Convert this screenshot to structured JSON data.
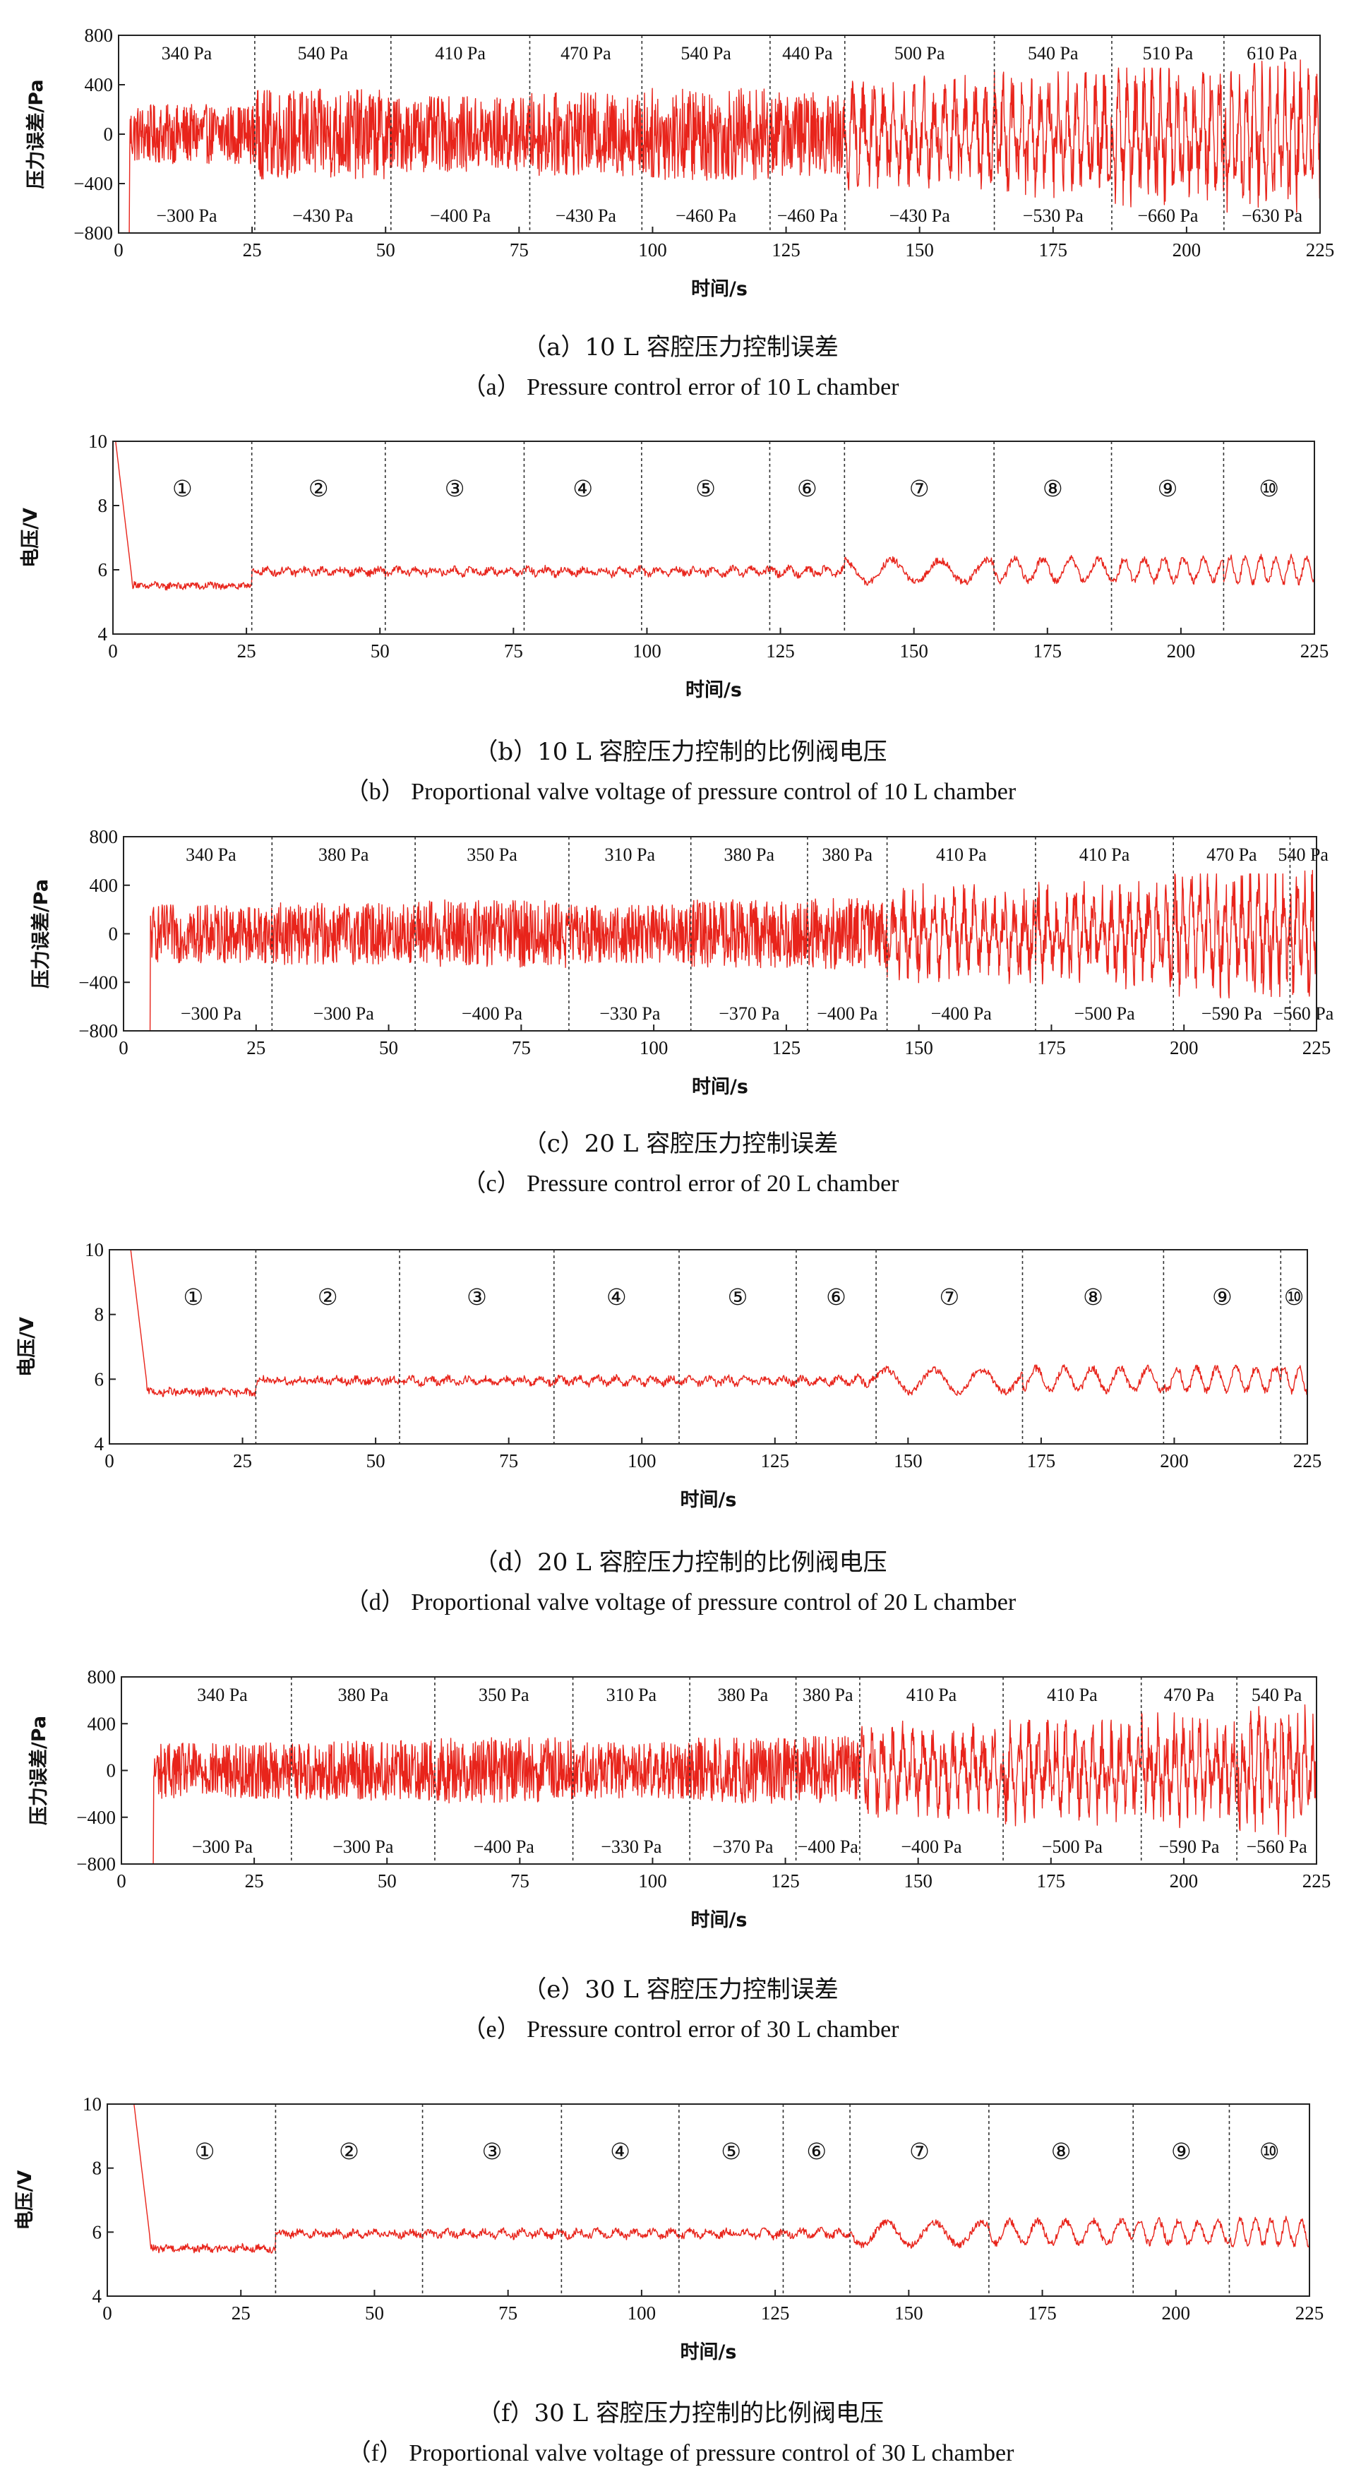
{
  "colors": {
    "trace": "#e8241b",
    "axis": "#222222",
    "divider": "#333333"
  },
  "chart_data": [
    {
      "id": "a",
      "type": "line",
      "kind": "error",
      "title": "",
      "xlabel": "时间/s",
      "ylabel": "压力误差/Pa",
      "xlim": [
        0,
        225
      ],
      "ylim": [
        -800,
        800
      ],
      "xticks": [
        "0",
        "25",
        "50",
        "75",
        "100",
        "125",
        "150",
        "175",
        "200",
        "225"
      ],
      "yticks": [
        "800",
        "400",
        "0",
        "−400",
        "−800"
      ],
      "boundaries": [
        0,
        25.5,
        51,
        77,
        98,
        122,
        136,
        164,
        186,
        207,
        225
      ],
      "upper_labels": [
        "340 Pa",
        "540 Pa",
        "410 Pa",
        "470 Pa",
        "540 Pa",
        "440 Pa",
        "500 Pa",
        "540 Pa",
        "510 Pa",
        "610 Pa"
      ],
      "lower_labels": [
        "−300 Pa",
        "−430 Pa",
        "−400 Pa",
        "−430 Pa",
        "−460 Pa",
        "−460 Pa",
        "−430 Pa",
        "−530 Pa",
        "−660 Pa",
        "−630 Pa"
      ],
      "upper_values": [
        340,
        540,
        410,
        470,
        540,
        440,
        500,
        540,
        510,
        610
      ],
      "lower_values": [
        -300,
        -430,
        -400,
        -430,
        -460,
        -460,
        -430,
        -530,
        -660,
        -630
      ],
      "signal_start": 2,
      "caption_cn": "（a）10 L 容腔压力控制误差",
      "caption_en": "（a） Pressure control error of 10 L chamber"
    },
    {
      "id": "b",
      "type": "line",
      "kind": "voltage",
      "xlabel": "时间/s",
      "ylabel": "电压/V",
      "xlim": [
        0,
        225
      ],
      "ylim": [
        4,
        10
      ],
      "xticks": [
        "0",
        "25",
        "50",
        "75",
        "100",
        "125",
        "150",
        "175",
        "200",
        "225"
      ],
      "yticks": [
        "10",
        "8",
        "6",
        "4"
      ],
      "boundaries": [
        0,
        26,
        51,
        77,
        99,
        123,
        137,
        165,
        187,
        208,
        225
      ],
      "segment_labels": [
        "①",
        "②",
        "③",
        "④",
        "⑤",
        "⑥",
        "⑦",
        "⑧",
        "⑨",
        "⑩"
      ],
      "segment_means": [
        5.5,
        5.95,
        5.95,
        5.95,
        5.95,
        5.95,
        5.95,
        6.0,
        6.0,
        6.0
      ],
      "segment_osc": [
        0.08,
        0.1,
        0.13,
        0.15,
        0.15,
        0.17,
        0.35,
        0.35,
        0.35,
        0.4
      ],
      "signal_start": 0.5,
      "caption_cn": "（b）10 L 容腔压力控制的比例阀电压",
      "caption_en": "（b） Proportional valve voltage of pressure control of 10 L chamber"
    },
    {
      "id": "c",
      "type": "line",
      "kind": "error",
      "xlabel": "时间/s",
      "ylabel": "压力误差/Pa",
      "xlim": [
        0,
        225
      ],
      "ylim": [
        -800,
        800
      ],
      "xticks": [
        "0",
        "25",
        "50",
        "75",
        "100",
        "125",
        "150",
        "175",
        "200",
        "225"
      ],
      "yticks": [
        "800",
        "400",
        "0",
        "−400",
        "−800"
      ],
      "boundaries": [
        5,
        28,
        55,
        84,
        107,
        129,
        144,
        172,
        198,
        220,
        225
      ],
      "upper_labels": [
        "340 Pa",
        "380 Pa",
        "350 Pa",
        "310 Pa",
        "380 Pa",
        "380 Pa",
        "410 Pa",
        "410 Pa",
        "470 Pa",
        "540 Pa"
      ],
      "lower_labels": [
        "−300 Pa",
        "−300 Pa",
        "−400 Pa",
        "−330 Pa",
        "−370 Pa",
        "−400 Pa",
        "−400 Pa",
        "−500 Pa",
        "−590 Pa",
        "−560 Pa"
      ],
      "upper_values": [
        340,
        380,
        350,
        310,
        380,
        380,
        410,
        410,
        470,
        540
      ],
      "lower_values": [
        -300,
        -300,
        -400,
        -330,
        -370,
        -400,
        -400,
        -500,
        -590,
        -560
      ],
      "signal_start": 5,
      "caption_cn": "（c）20 L 容腔压力控制误差",
      "caption_en": "（c） Pressure control error of 20 L chamber"
    },
    {
      "id": "d",
      "type": "line",
      "kind": "voltage",
      "xlabel": "时间/s",
      "ylabel": "电压/V",
      "xlim": [
        0,
        225
      ],
      "ylim": [
        4,
        10
      ],
      "xticks": [
        "0",
        "25",
        "50",
        "75",
        "100",
        "125",
        "150",
        "175",
        "200",
        "225"
      ],
      "yticks": [
        "10",
        "8",
        "6",
        "4"
      ],
      "boundaries": [
        4,
        27.5,
        54.5,
        83.5,
        107,
        129,
        144,
        171.5,
        198,
        220,
        225
      ],
      "segment_labels": [
        "①",
        "②",
        "③",
        "④",
        "⑤",
        "⑥",
        "⑦",
        "⑧",
        "⑨",
        "⑩"
      ],
      "segment_means": [
        5.6,
        5.95,
        5.95,
        5.95,
        5.95,
        5.95,
        5.95,
        6.0,
        6.0,
        6.0
      ],
      "segment_osc": [
        0.08,
        0.1,
        0.13,
        0.15,
        0.15,
        0.17,
        0.35,
        0.35,
        0.35,
        0.4
      ],
      "signal_start": 4,
      "caption_cn": "（d）20 L 容腔压力控制的比例阀电压",
      "caption_en": "（d） Proportional valve voltage of pressure control of 20 L chamber"
    },
    {
      "id": "e",
      "type": "line",
      "kind": "error",
      "xlabel": "时间/s",
      "ylabel": "压力误差/Pa",
      "xlim": [
        0,
        225
      ],
      "ylim": [
        -800,
        800
      ],
      "xticks": [
        "0",
        "25",
        "50",
        "75",
        "100",
        "125",
        "150",
        "175",
        "200",
        "225"
      ],
      "yticks": [
        "800",
        "400",
        "0",
        "−400",
        "−800"
      ],
      "boundaries": [
        6,
        32,
        59,
        85,
        107,
        127,
        139,
        166,
        192,
        210,
        225
      ],
      "upper_labels": [
        "340 Pa",
        "380 Pa",
        "350 Pa",
        "310 Pa",
        "380 Pa",
        "380 Pa",
        "410 Pa",
        "410 Pa",
        "470 Pa",
        "540 Pa"
      ],
      "lower_labels": [
        "−300 Pa",
        "−300 Pa",
        "−400 Pa",
        "−330 Pa",
        "−370 Pa",
        "−400 Pa",
        "−400 Pa",
        "−500 Pa",
        "−590 Pa",
        "−560 Pa"
      ],
      "upper_values": [
        340,
        380,
        350,
        310,
        380,
        380,
        410,
        410,
        470,
        540
      ],
      "lower_values": [
        -300,
        -300,
        -400,
        -330,
        -370,
        -400,
        -400,
        -500,
        -590,
        -560
      ],
      "signal_start": 6,
      "caption_cn": "（e）30 L 容腔压力控制误差",
      "caption_en": "（e） Pressure control error of 30 L chamber"
    },
    {
      "id": "f",
      "type": "line",
      "kind": "voltage",
      "xlabel": "时间/s",
      "ylabel": "电压/V",
      "xlim": [
        0,
        225
      ],
      "ylim": [
        4,
        10
      ],
      "xticks": [
        "0",
        "25",
        "50",
        "75",
        "100",
        "125",
        "150",
        "175",
        "200",
        "225"
      ],
      "yticks": [
        "10",
        "8",
        "6",
        "4"
      ],
      "boundaries": [
        5,
        31.5,
        59,
        85,
        107,
        126.5,
        139,
        165,
        192,
        210,
        225
      ],
      "segment_labels": [
        "①",
        "②",
        "③",
        "④",
        "⑤",
        "⑥",
        "⑦",
        "⑧",
        "⑨",
        "⑩"
      ],
      "segment_means": [
        5.5,
        5.95,
        5.95,
        5.95,
        5.95,
        5.95,
        5.95,
        6.0,
        6.0,
        6.0
      ],
      "segment_osc": [
        0.08,
        0.1,
        0.13,
        0.15,
        0.15,
        0.17,
        0.35,
        0.35,
        0.35,
        0.4
      ],
      "signal_start": 5,
      "caption_cn": "（f）30 L 容腔压力控制的比例阀电压",
      "caption_en": "（f） Proportional valve voltage of pressure control of 30 L chamber"
    }
  ]
}
